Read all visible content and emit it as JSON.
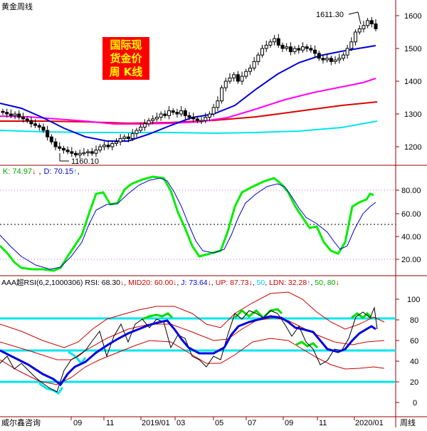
{
  "header": {
    "title": "黄金周线"
  },
  "badge": {
    "lines": [
      "国际现",
      "货金价",
      "周  K线"
    ]
  },
  "price_panel": {
    "yticks": [
      "1600",
      "1500",
      "1400",
      "1300",
      "1200"
    ],
    "high_label": "1611.30",
    "low_label": "1160.10"
  },
  "kd_panel": {
    "k_label": "K: 74.97",
    "k_arrow": "↓",
    "d_label": "D: 70.15",
    "d_arrow": "↑",
    "yticks": [
      "80.00",
      "60.00",
      "40.00",
      "20.00"
    ]
  },
  "rsi_panel": {
    "name": "AAA超RSI(6,2,1000306)",
    "rsi": "RSI: 68.30",
    "rsi_arrow": "↓",
    "mid": "MID20: 60.00",
    "mid_arrow": "↓",
    "j": "J: 73.64",
    "j_arrow": "↓",
    "up": "UP: 87.73",
    "up_arrow": "↓",
    "v50": "50",
    "ldn": "LDN: 32.28",
    "ldn_arrow": "↑",
    "tail": "50, 80",
    "tail_arrow": "↓",
    "yticks": [
      "100",
      "80",
      "60",
      "40",
      "20",
      "0"
    ]
  },
  "footer": {
    "source": "威尔鑫咨询",
    "period": "周线",
    "xlabels": [
      "09",
      "11",
      "2019/01",
      "03",
      "05",
      "07",
      "09",
      "11",
      "2020/01"
    ]
  },
  "colors": {
    "candle": "#000000",
    "ma_blue": "#0000dd",
    "ma_magenta": "#ff00ff",
    "ma_red": "#dd0000",
    "ma_cyan": "#00e5ee",
    "k_green": "#00ee00",
    "d_blue": "#0000cc",
    "rsi_black": "#000000",
    "mid_red": "#cc0000",
    "j_blue": "#0000dd",
    "cyan_line": "#00e5ee",
    "green": "#00dd00"
  }
}
